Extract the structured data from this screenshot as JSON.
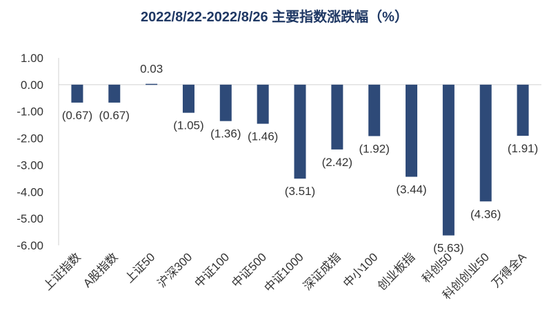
{
  "chart_data": {
    "type": "bar",
    "title": "2022/8/22-2022/8/26 主要指数涨跌幅（%）",
    "categories": [
      "上证指数",
      "A股指数",
      "上证50",
      "沪深300",
      "中证100",
      "中证500",
      "中证1000",
      "深证成指",
      "中小100",
      "创业板指",
      "科创50",
      "科创创业50",
      "万得全A"
    ],
    "values": [
      -0.67,
      -0.67,
      0.03,
      -1.05,
      -1.36,
      -1.46,
      -3.51,
      -2.42,
      -1.92,
      -3.44,
      -5.63,
      -4.36,
      -1.91
    ],
    "data_labels": [
      "(0.67)",
      "(0.67)",
      "0.03",
      "(1.05)",
      "(1.36)",
      "(1.46)",
      "(3.51)",
      "(2.42)",
      "(1.92)",
      "(3.44)",
      "(5.63)",
      "(4.36)",
      "(1.91)"
    ],
    "y_ticks": [
      "1.00",
      "0.00",
      "-1.00",
      "-2.00",
      "-3.00",
      "-4.00",
      "-5.00",
      "-6.00"
    ],
    "ylim": [
      -6,
      1
    ],
    "xlabel": "",
    "ylabel": "",
    "grid": false,
    "bar_color": "#2e4a78"
  }
}
